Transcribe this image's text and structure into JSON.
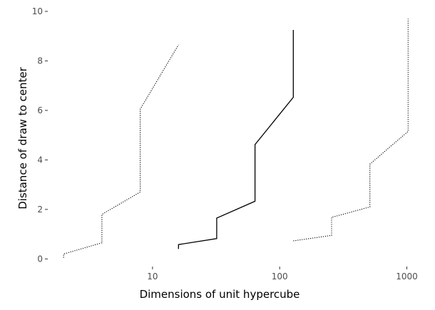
{
  "chart_data": {
    "type": "line",
    "title": "",
    "xlabel": "Dimensions of unit hypercube",
    "ylabel": "Distance of draw to center",
    "x_scale": "log10",
    "xlim": [
      1.56,
      1390
    ],
    "ylim": [
      -0.25,
      10.0
    ],
    "grid": false,
    "legend": "none",
    "x_ticks": [
      {
        "value": 10,
        "label": "10"
      },
      {
        "value": 100,
        "label": "100"
      },
      {
        "value": 1000,
        "label": "1000"
      }
    ],
    "y_ticks": [
      {
        "value": 0,
        "label": "0"
      },
      {
        "value": 2,
        "label": "2"
      },
      {
        "value": 4,
        "label": "4"
      },
      {
        "value": 6,
        "label": "6"
      },
      {
        "value": 8,
        "label": "8"
      },
      {
        "value": 10,
        "label": "10"
      }
    ],
    "series": [
      {
        "line_style": "dotted",
        "color": "#000000",
        "points": [
          [
            2,
            0.05
          ],
          [
            2,
            0.2
          ],
          [
            4,
            0.65
          ],
          [
            4,
            1.8
          ],
          [
            8,
            2.7
          ],
          [
            8,
            6.05
          ],
          [
            16,
            8.65
          ]
        ]
      },
      {
        "line_style": "solid",
        "color": "#000000",
        "points": [
          [
            16,
            0.4
          ],
          [
            16,
            0.58
          ],
          [
            32,
            0.82
          ],
          [
            32,
            1.65
          ],
          [
            64,
            2.33
          ],
          [
            64,
            4.62
          ],
          [
            128,
            6.53
          ],
          [
            128,
            9.25
          ]
        ]
      },
      {
        "line_style": "dotted",
        "color": "#000000",
        "points": [
          [
            128,
            0.73
          ],
          [
            256,
            0.95
          ],
          [
            256,
            1.68
          ],
          [
            512,
            2.1
          ],
          [
            512,
            3.83
          ],
          [
            1024,
            5.15
          ],
          [
            1024,
            9.7
          ]
        ]
      }
    ]
  }
}
